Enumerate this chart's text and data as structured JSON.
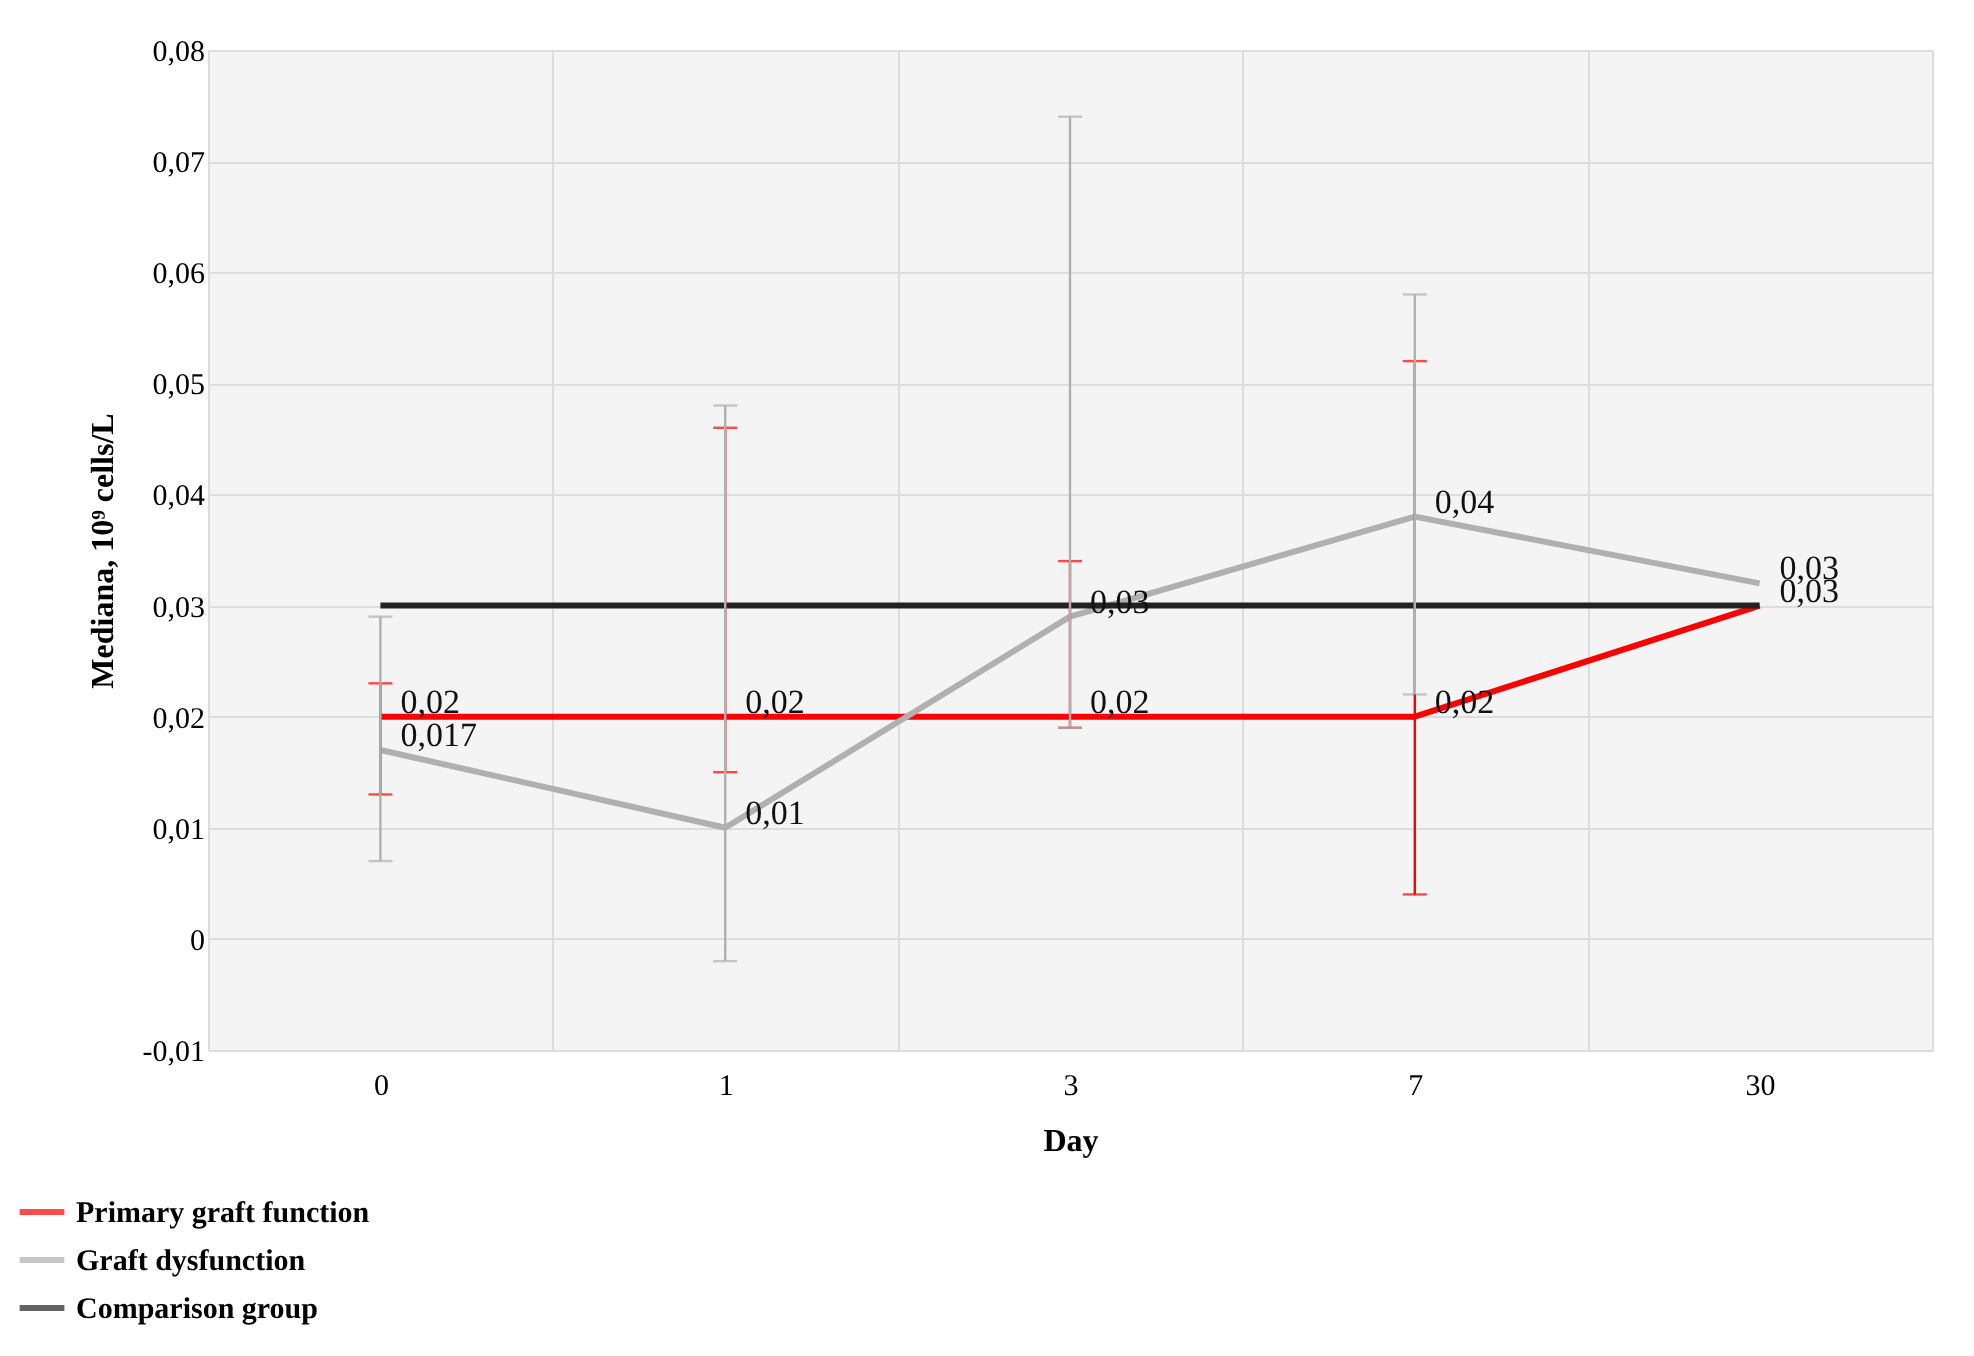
{
  "chart_data": {
    "type": "line",
    "xlabel": "Day",
    "ylabel": "Mediana, 10⁹ cells/L",
    "categories": [
      "0",
      "1",
      "3",
      "7",
      "30"
    ],
    "series": [
      {
        "name": "Primary graft function",
        "color": "#ff0000",
        "values": [
          0.02,
          0.02,
          0.02,
          0.02,
          0.03
        ],
        "value_labels": [
          "0,02",
          "0,02",
          "0,02",
          "0,02",
          "0,03"
        ],
        "errors": [
          [
            0.013,
            0.023
          ],
          [
            0.015,
            0.046
          ],
          [
            0.019,
            0.034
          ],
          [
            0.004,
            0.052
          ],
          null
        ]
      },
      {
        "name": "Graft dysfunction",
        "color": "#b0b0b0",
        "values": [
          0.017,
          0.01,
          0.029,
          0.038,
          0.032
        ],
        "value_labels": [
          "0,017",
          "0,01",
          "0,03",
          "0,04",
          "0,03"
        ],
        "errors": [
          [
            0.007,
            0.029
          ],
          [
            -0.002,
            0.048
          ],
          [
            0.019,
            0.074
          ],
          [
            0.022,
            0.058
          ],
          null
        ]
      },
      {
        "name": "Comparison group",
        "color": "#222222",
        "values": [
          0.03,
          0.03,
          0.03,
          0.03,
          0.03
        ]
      }
    ],
    "ylim": [
      -0.01,
      0.08
    ],
    "yticks": [
      {
        "value": -0.01,
        "label": "-0,01"
      },
      {
        "value": 0,
        "label": "0"
      },
      {
        "value": 0.01,
        "label": "0,01"
      },
      {
        "value": 0.02,
        "label": "0,02"
      },
      {
        "value": 0.03,
        "label": "0,03"
      },
      {
        "value": 0.04,
        "label": "0,04"
      },
      {
        "value": 0.05,
        "label": "0,05"
      },
      {
        "value": 0.06,
        "label": "0,06"
      },
      {
        "value": 0.07,
        "label": "0,07"
      },
      {
        "value": 0.08,
        "label": "0,08"
      }
    ],
    "grid": true,
    "legend": "bottom left",
    "marker": "none",
    "line_style": "solid"
  }
}
